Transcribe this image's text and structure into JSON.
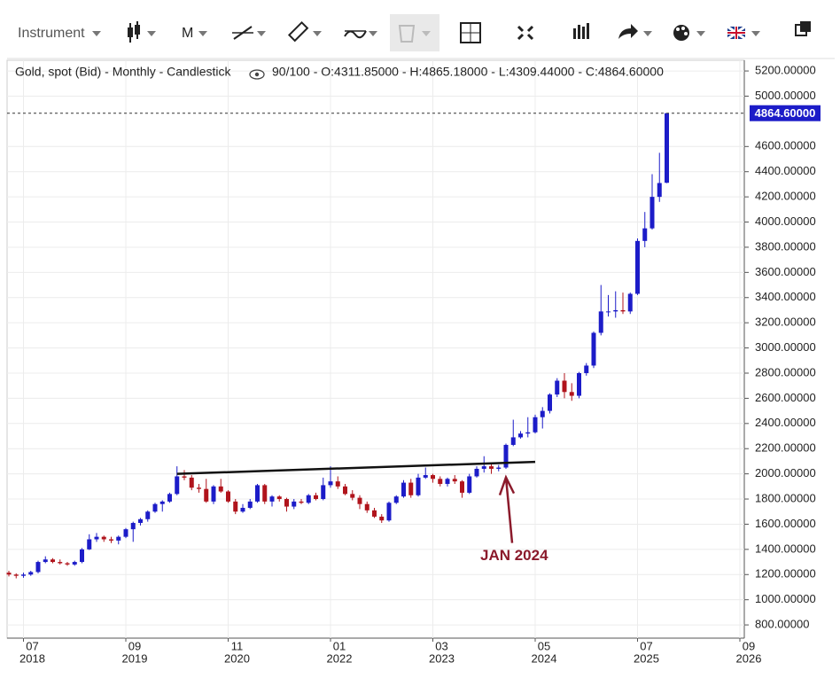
{
  "toolbar": {
    "instrument": "Instrument",
    "period": "M"
  },
  "chart_data": {
    "type": "candlestick",
    "title": "Gold, spot (Bid) - Monthly - Candlestick",
    "info": "90/100 - O:4311.85000 - H:4865.18000 - L:4309.44000 - C:4864.60000",
    "up_color": "#1c1cc8",
    "down_color": "#b0141c",
    "grid": true,
    "x": [
      "2018-05",
      "2018-06",
      "2018-07",
      "2018-08",
      "2018-09",
      "2018-10",
      "2018-11",
      "2018-12",
      "2019-01",
      "2019-02",
      "2019-03",
      "2019-04",
      "2019-05",
      "2019-06",
      "2019-07",
      "2019-08",
      "2019-09",
      "2019-10",
      "2019-11",
      "2019-12",
      "2020-01",
      "2020-02",
      "2020-03",
      "2020-04",
      "2020-05",
      "2020-06",
      "2020-07",
      "2020-08",
      "2020-09",
      "2020-10",
      "2020-11",
      "2020-12",
      "2021-01",
      "2021-02",
      "2021-03",
      "2021-04",
      "2021-05",
      "2021-06",
      "2021-07",
      "2021-08",
      "2021-09",
      "2021-10",
      "2021-11",
      "2021-12",
      "2022-01",
      "2022-02",
      "2022-03",
      "2022-04",
      "2022-05",
      "2022-06",
      "2022-07",
      "2022-08",
      "2022-09",
      "2022-10",
      "2022-11",
      "2022-12",
      "2023-01",
      "2023-02",
      "2023-03",
      "2023-04",
      "2023-05",
      "2023-06",
      "2023-07",
      "2023-08",
      "2023-09",
      "2023-10",
      "2023-11",
      "2023-12",
      "2024-01",
      "2024-02",
      "2024-03",
      "2024-04",
      "2024-05",
      "2024-06",
      "2024-07",
      "2024-08",
      "2024-09",
      "2024-10",
      "2024-11",
      "2024-12",
      "2025-01",
      "2025-02",
      "2025-03",
      "2025-04",
      "2025-05",
      "2025-06",
      "2025-07",
      "2025-08",
      "2025-09",
      "2025-10",
      "2025-11"
    ],
    "open": [
      1215,
      1200,
      1190,
      1200,
      1220,
      1300,
      1320,
      1300,
      1290,
      1280,
      1300,
      1400,
      1480,
      1500,
      1480,
      1470,
      1500,
      1560,
      1610,
      1640,
      1700,
      1760,
      1780,
      1840,
      1980,
      1970,
      1890,
      1880,
      1780,
      1900,
      1860,
      1780,
      1700,
      1730,
      1780,
      1910,
      1780,
      1820,
      1800,
      1740,
      1780,
      1770,
      1830,
      1800,
      1910,
      1940,
      1900,
      1840,
      1810,
      1760,
      1710,
      1660,
      1630,
      1770,
      1820,
      1930,
      1830,
      1970,
      1990,
      1960,
      1920,
      1960,
      1940,
      1850,
      1980,
      2040,
      2060,
      2040,
      2050,
      2230,
      2290,
      2320,
      2330,
      2450,
      2500,
      2630,
      2740,
      2650,
      2620,
      2800,
      2860,
      3120,
      3290,
      3290,
      3300,
      3290,
      3430,
      3850,
      3950,
      4200,
      4311.85
    ],
    "high": [
      1230,
      1210,
      1215,
      1230,
      1310,
      1345,
      1330,
      1320,
      1300,
      1310,
      1410,
      1520,
      1530,
      1510,
      1500,
      1510,
      1570,
      1620,
      1650,
      1710,
      1770,
      1790,
      1850,
      2060,
      2030,
      1990,
      1920,
      1960,
      1910,
      1960,
      1870,
      1800,
      1760,
      1800,
      1920,
      1920,
      1830,
      1830,
      1810,
      1800,
      1800,
      1840,
      1850,
      1970,
      2060,
      1980,
      1920,
      1870,
      1830,
      1780,
      1730,
      1680,
      1780,
      1830,
      1950,
      1960,
      2000,
      2050,
      2000,
      1980,
      1970,
      1990,
      1950,
      2000,
      2060,
      2140,
      2080,
      2070,
      2240,
      2430,
      2340,
      2450,
      2470,
      2530,
      2640,
      2760,
      2800,
      2720,
      2810,
      2880,
      3130,
      3500,
      3420,
      3450,
      3440,
      3440,
      3870,
      4080,
      4380,
      4550,
      4865.18
    ],
    "low": [
      1185,
      1170,
      1175,
      1190,
      1210,
      1290,
      1290,
      1280,
      1270,
      1270,
      1290,
      1395,
      1460,
      1460,
      1450,
      1440,
      1490,
      1460,
      1590,
      1620,
      1690,
      1700,
      1770,
      1830,
      1950,
      1870,
      1850,
      1770,
      1760,
      1850,
      1770,
      1680,
      1690,
      1720,
      1770,
      1760,
      1740,
      1780,
      1700,
      1720,
      1760,
      1760,
      1790,
      1790,
      1890,
      1880,
      1830,
      1790,
      1720,
      1690,
      1650,
      1610,
      1620,
      1760,
      1810,
      1810,
      1820,
      1960,
      1930,
      1900,
      1900,
      1920,
      1810,
      1840,
      1970,
      2010,
      2000,
      2020,
      2040,
      2220,
      2280,
      2290,
      2320,
      2360,
      2480,
      2610,
      2600,
      2580,
      2600,
      2780,
      2840,
      3100,
      3250,
      3240,
      3270,
      3270,
      3420,
      3800,
      3940,
      4160,
      4309.44
    ],
    "close": [
      1200,
      1190,
      1200,
      1220,
      1300,
      1320,
      1300,
      1290,
      1280,
      1300,
      1400,
      1480,
      1500,
      1480,
      1470,
      1500,
      1560,
      1610,
      1640,
      1700,
      1760,
      1780,
      1840,
      1980,
      1970,
      1890,
      1880,
      1780,
      1900,
      1860,
      1780,
      1700,
      1730,
      1780,
      1910,
      1780,
      1820,
      1800,
      1740,
      1780,
      1770,
      1830,
      1800,
      1910,
      1940,
      1900,
      1840,
      1810,
      1760,
      1710,
      1660,
      1630,
      1770,
      1820,
      1930,
      1830,
      1970,
      1990,
      1960,
      1920,
      1960,
      1940,
      1850,
      1980,
      2040,
      2060,
      2040,
      2050,
      2230,
      2290,
      2320,
      2330,
      2450,
      2500,
      2630,
      2740,
      2650,
      2620,
      2800,
      2860,
      3120,
      3290,
      3290,
      3300,
      3290,
      3430,
      3850,
      3950,
      4200,
      4310,
      4864.6
    ],
    "ylim": [
      695,
      5285
    ],
    "yticks": [
      {
        "value": 800,
        "label": "800.00000"
      },
      {
        "value": 1000,
        "label": "1000.00000"
      },
      {
        "value": 1200,
        "label": "1200.00000"
      },
      {
        "value": 1400,
        "label": "1400.00000"
      },
      {
        "value": 1600,
        "label": "1600.00000"
      },
      {
        "value": 1800,
        "label": "1800.00000"
      },
      {
        "value": 2000,
        "label": "2000.00000"
      },
      {
        "value": 2200,
        "label": "2200.00000"
      },
      {
        "value": 2400,
        "label": "2400.00000"
      },
      {
        "value": 2600,
        "label": "2600.00000"
      },
      {
        "value": 2800,
        "label": "2800.00000"
      },
      {
        "value": 3000,
        "label": "3000.00000"
      },
      {
        "value": 3200,
        "label": "3200.00000"
      },
      {
        "value": 3400,
        "label": "3400.00000"
      },
      {
        "value": 3600,
        "label": "3600.00000"
      },
      {
        "value": 3800,
        "label": "3800.00000"
      },
      {
        "value": 4000,
        "label": "4000.00000"
      },
      {
        "value": 4200,
        "label": "4200.00000"
      },
      {
        "value": 4400,
        "label": "4400.00000"
      },
      {
        "value": 4600,
        "label": "4600.00000"
      },
      {
        "value": 5000,
        "label": "5000.00000"
      },
      {
        "value": 5200,
        "label": "5200.00000"
      }
    ],
    "xticks": [
      {
        "value": "2018-07",
        "label": [
          "07",
          "2018"
        ]
      },
      {
        "value": "2019-09",
        "label": [
          "09",
          "2019"
        ]
      },
      {
        "value": "2020-11",
        "label": [
          "11",
          "2020"
        ]
      },
      {
        "value": "2022-01",
        "label": [
          "01",
          "2022"
        ]
      },
      {
        "value": "2023-03",
        "label": [
          "03",
          "2023"
        ]
      },
      {
        "value": "2024-05",
        "label": [
          "05",
          "2024"
        ]
      },
      {
        "value": "2025-07",
        "label": [
          "07",
          "2025"
        ]
      },
      {
        "value": "2026-09",
        "label": [
          "09",
          "2026"
        ]
      }
    ],
    "last_price": {
      "value": 4864.6,
      "label": "4864.60000"
    },
    "trendline": {
      "x": [
        "2020-04",
        "2024-05"
      ],
      "values": [
        2000,
        2095
      ]
    },
    "annotation": {
      "text": "JAN 2024",
      "x": "2024-01",
      "value": 2000,
      "color": "#8b1a2b"
    }
  }
}
